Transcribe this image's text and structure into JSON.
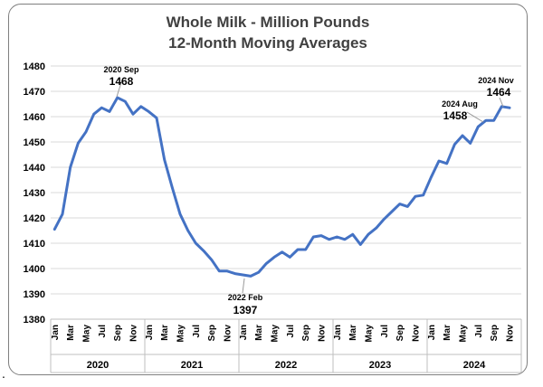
{
  "chart_data": {
    "type": "line",
    "title_line1": "Whole Milk - Million Pounds",
    "title_line2": "12-Month Moving Averages",
    "ylim": [
      1380,
      1480
    ],
    "yticks": [
      1380,
      1390,
      1400,
      1410,
      1420,
      1430,
      1440,
      1450,
      1460,
      1470,
      1480
    ],
    "grid": true,
    "month_labels": [
      "Jan",
      "Mar",
      "May",
      "Jul",
      "Sep",
      "Nov"
    ],
    "years": [
      "2020",
      "2021",
      "2022",
      "2023",
      "2024"
    ],
    "series": [
      {
        "color": "#4472c4",
        "values": [
          1415.5,
          1421.5,
          1440,
          1449.5,
          1454,
          1461,
          1463.5,
          1462,
          1467.5,
          1466,
          1461,
          1464,
          1462,
          1459.5,
          1443,
          1432,
          1421.5,
          1415,
          1410,
          1407,
          1403.5,
          1399,
          1399,
          1398,
          1397.5,
          1397,
          1398.5,
          1402,
          1404.5,
          1406.5,
          1404.5,
          1407.5,
          1407.5,
          1412.5,
          1413,
          1411.5,
          1412.5,
          1411.5,
          1413.5,
          1409.5,
          1413.5,
          1416,
          1419.5,
          1422.5,
          1425.5,
          1424.5,
          1428.5,
          1429,
          1436,
          1442.5,
          1441.5,
          1449,
          1452.5,
          1449.5,
          1456,
          1458.5,
          1458.5,
          1464,
          1463.5
        ]
      }
    ],
    "annotations": [
      {
        "label": "2020 Sep",
        "value": "1468"
      },
      {
        "label": "2022 Feb",
        "value": "1397"
      },
      {
        "label": "2024 Aug",
        "value": "1458"
      },
      {
        "label": "2024 Nov",
        "value": "1464"
      }
    ]
  }
}
